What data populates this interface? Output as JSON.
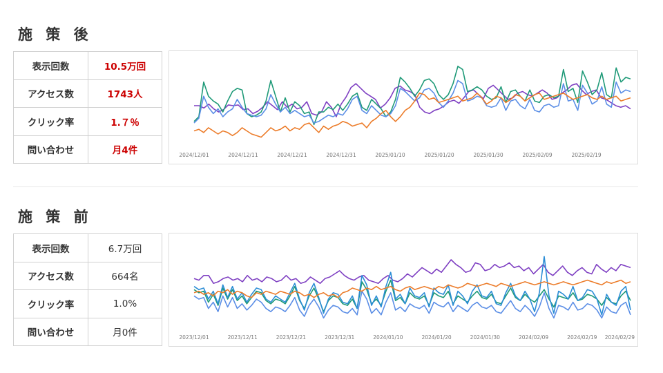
{
  "after": {
    "title": "施 策 後",
    "kpis": [
      {
        "label": "表示回数",
        "value": "10.5万回"
      },
      {
        "label": "アクセス数",
        "value": "1743人"
      },
      {
        "label": "クリック率",
        "value": "1.７％"
      },
      {
        "label": "問い合わせ",
        "value": "月4件"
      }
    ]
  },
  "before": {
    "title": "施 策 前",
    "kpis": [
      {
        "label": "表示回数",
        "value": "6.7万回"
      },
      {
        "label": "アクセス数",
        "value": "664名"
      },
      {
        "label": "クリック率",
        "value": "1.0%"
      },
      {
        "label": "問い合わせ",
        "value": "月0件"
      }
    ]
  },
  "colors": {
    "purple": "#7e3fc2",
    "green": "#1f9a78",
    "blue": "#5b8ee6",
    "orange": "#ec7c2a"
  },
  "chart_data": [
    {
      "type": "line",
      "title": "",
      "xlabel": "",
      "ylabel": "",
      "grid": false,
      "ylim": [
        0,
        100
      ],
      "x_start": "2024/12/01",
      "x_end": "2025/02/28",
      "x_tick_labels": [
        "2024/12/01",
        "2024/12/11",
        "2024/12/21",
        "2024/12/31",
        "2025/01/10",
        "2025/01/20",
        "2025/01/30",
        "2025/02/09",
        "2025/02/19"
      ],
      "series": [
        {
          "color": "#7e3fc2",
          "values": [
            50,
            50,
            47,
            52,
            46,
            42,
            45,
            51,
            50,
            51,
            45,
            46,
            40,
            43,
            48,
            55,
            50,
            45,
            55,
            48,
            52,
            46,
            48,
            55,
            40,
            38,
            42,
            55,
            48,
            36,
            52,
            61,
            73,
            78,
            72,
            66,
            62,
            58,
            47,
            52,
            60,
            72,
            75,
            70,
            68,
            64,
            48,
            42,
            40,
            44,
            46,
            50,
            55,
            57,
            53,
            60,
            68,
            70,
            64,
            59,
            72,
            76,
            70,
            64,
            58,
            60,
            66,
            68,
            64,
            62,
            66,
            70,
            66,
            58,
            60,
            66,
            70,
            76,
            78,
            70,
            64,
            68,
            70,
            60,
            58,
            54,
            50,
            48,
            50,
            46
          ]
        },
        {
          "color": "#1f9a78",
          "values": [
            30,
            36,
            80,
            62,
            56,
            52,
            42,
            56,
            68,
            72,
            70,
            40,
            36,
            38,
            42,
            56,
            82,
            62,
            42,
            60,
            42,
            55,
            50,
            40,
            42,
            26,
            42,
            42,
            48,
            45,
            52,
            44,
            52,
            62,
            66,
            48,
            44,
            58,
            52,
            46,
            36,
            42,
            58,
            86,
            80,
            72,
            62,
            70,
            82,
            84,
            78,
            64,
            58,
            64,
            78,
            100,
            96,
            68,
            70,
            74,
            70,
            62,
            58,
            60,
            74,
            54,
            68,
            70,
            62,
            56,
            70,
            56,
            54,
            62,
            64,
            60,
            62,
            96,
            68,
            72,
            54,
            94,
            80,
            64,
            70,
            92,
            64,
            60,
            98,
            80,
            86,
            84
          ]
        },
        {
          "color": "#5b8ee6",
          "values": [
            28,
            34,
            62,
            48,
            40,
            46,
            36,
            42,
            46,
            58,
            48,
            40,
            38,
            36,
            38,
            46,
            64,
            52,
            42,
            48,
            40,
            44,
            40,
            36,
            38,
            28,
            30,
            34,
            38,
            36,
            40,
            38,
            46,
            58,
            62,
            44,
            40,
            50,
            44,
            38,
            36,
            40,
            50,
            72,
            68,
            62,
            56,
            60,
            70,
            72,
            66,
            54,
            48,
            56,
            66,
            82,
            78,
            56,
            58,
            62,
            60,
            50,
            48,
            50,
            60,
            44,
            56,
            58,
            50,
            46,
            58,
            44,
            42,
            50,
            52,
            48,
            50,
            78,
            56,
            58,
            44,
            76,
            66,
            52,
            56,
            74,
            52,
            48,
            80,
            66,
            70,
            68
          ]
        },
        {
          "color": "#ec7c2a",
          "values": [
            18,
            20,
            16,
            22,
            18,
            14,
            18,
            16,
            12,
            16,
            22,
            18,
            14,
            12,
            10,
            16,
            22,
            18,
            20,
            24,
            18,
            22,
            20,
            26,
            28,
            22,
            16,
            24,
            20,
            24,
            26,
            30,
            28,
            24,
            26,
            28,
            22,
            30,
            34,
            40,
            44,
            36,
            30,
            36,
            44,
            48,
            56,
            66,
            64,
            58,
            60,
            54,
            56,
            58,
            60,
            62,
            56,
            58,
            60,
            66,
            60,
            52,
            56,
            62,
            60,
            54,
            58,
            64,
            62,
            56,
            60,
            64,
            66,
            58,
            60,
            62,
            64,
            66,
            62,
            58,
            60,
            62,
            64,
            60,
            58,
            62,
            58,
            60,
            62,
            56,
            58,
            60
          ]
        }
      ]
    },
    {
      "type": "line",
      "title": "",
      "xlabel": "",
      "ylabel": "",
      "grid": false,
      "ylim": [
        0,
        100
      ],
      "x_start": "2023/12/01",
      "x_end": "2024/02/29",
      "x_tick_labels": [
        "2023/12/01",
        "2023/12/11",
        "2023/12/21",
        "2023/12/31",
        "2024/01/10",
        "2024/01/20",
        "2024/01/30",
        "2024/02/09",
        "2024/02/19",
        "2024/02/29"
      ],
      "series": [
        {
          "color": "#7e3fc2",
          "values": [
            62,
            60,
            66,
            66,
            56,
            58,
            62,
            64,
            60,
            62,
            58,
            66,
            60,
            62,
            58,
            64,
            62,
            58,
            60,
            66,
            60,
            62,
            56,
            58,
            64,
            60,
            56,
            62,
            64,
            68,
            72,
            66,
            62,
            60,
            64,
            66,
            60,
            58,
            56,
            62,
            66,
            60,
            58,
            62,
            68,
            64,
            70,
            76,
            72,
            68,
            74,
            70,
            78,
            86,
            80,
            76,
            70,
            72,
            82,
            80,
            72,
            74,
            80,
            76,
            78,
            82,
            76,
            78,
            72,
            76,
            68,
            74,
            80,
            70,
            66,
            72,
            78,
            70,
            66,
            72,
            76,
            70,
            68,
            80,
            74,
            70,
            76,
            72,
            80,
            78,
            76
          ]
        },
        {
          "color": "#1f9a78",
          "values": [
            48,
            44,
            46,
            32,
            42,
            28,
            50,
            36,
            48,
            34,
            40,
            30,
            38,
            46,
            44,
            34,
            30,
            36,
            34,
            30,
            40,
            52,
            34,
            24,
            40,
            50,
            36,
            20,
            34,
            40,
            38,
            30,
            28,
            36,
            24,
            58,
            48,
            30,
            36,
            28,
            46,
            60,
            34,
            38,
            30,
            44,
            38,
            36,
            40,
            28,
            44,
            40,
            38,
            46,
            30,
            40,
            36,
            32,
            40,
            46,
            38,
            36,
            42,
            32,
            30,
            40,
            50,
            38,
            34,
            42,
            36,
            32,
            40,
            48,
            36,
            26,
            40,
            38,
            36,
            44,
            34,
            36,
            42,
            40,
            36,
            28,
            38,
            32,
            30,
            40,
            46,
            34
          ]
        },
        {
          "color": "#2b8dd6",
          "values": [
            52,
            48,
            50,
            36,
            46,
            30,
            54,
            38,
            52,
            36,
            44,
            32,
            42,
            50,
            48,
            36,
            32,
            40,
            36,
            32,
            44,
            56,
            36,
            22,
            44,
            56,
            38,
            18,
            36,
            44,
            42,
            32,
            30,
            40,
            24,
            66,
            54,
            28,
            40,
            26,
            52,
            70,
            36,
            42,
            30,
            50,
            40,
            38,
            44,
            26,
            50,
            44,
            42,
            54,
            28,
            46,
            40,
            30,
            46,
            54,
            40,
            38,
            46,
            30,
            28,
            44,
            56,
            40,
            34,
            46,
            36,
            20,
            44,
            90,
            40,
            18,
            46,
            42,
            36,
            52,
            34,
            38,
            48,
            46,
            36,
            16,
            42,
            32,
            28,
            46,
            52,
            22
          ]
        },
        {
          "color": "#5b8ee6",
          "values": [
            40,
            36,
            38,
            24,
            32,
            20,
            40,
            26,
            38,
            24,
            30,
            22,
            28,
            36,
            32,
            24,
            20,
            26,
            24,
            20,
            28,
            38,
            22,
            14,
            28,
            36,
            26,
            12,
            22,
            28,
            26,
            20,
            18,
            24,
            16,
            46,
            36,
            18,
            24,
            16,
            32,
            44,
            22,
            26,
            20,
            30,
            26,
            24,
            28,
            18,
            32,
            28,
            26,
            32,
            20,
            28,
            24,
            20,
            28,
            32,
            26,
            24,
            28,
            20,
            18,
            26,
            34,
            24,
            20,
            28,
            22,
            14,
            26,
            44,
            24,
            12,
            28,
            26,
            22,
            32,
            22,
            24,
            30,
            28,
            22,
            12,
            26,
            20,
            18,
            28,
            32,
            16
          ]
        },
        {
          "color": "#ec7c2a",
          "values": [
            44,
            46,
            42,
            44,
            40,
            46,
            44,
            48,
            42,
            46,
            44,
            40,
            38,
            44,
            42,
            46,
            44,
            42,
            46,
            44,
            42,
            46,
            44,
            40,
            42,
            38,
            42,
            44,
            40,
            42,
            38,
            44,
            46,
            50,
            48,
            46,
            50,
            48,
            52,
            48,
            50,
            52,
            48,
            46,
            50,
            52,
            48,
            50,
            52,
            50,
            48,
            52,
            50,
            54,
            52,
            50,
            52,
            56,
            54,
            52,
            54,
            56,
            54,
            52,
            56,
            54,
            52,
            54,
            56,
            58,
            56,
            54,
            56,
            58,
            56,
            54,
            56,
            58,
            56,
            54,
            56,
            58,
            60,
            58,
            56,
            54,
            58,
            56,
            58,
            60,
            56,
            58
          ]
        }
      ]
    }
  ]
}
